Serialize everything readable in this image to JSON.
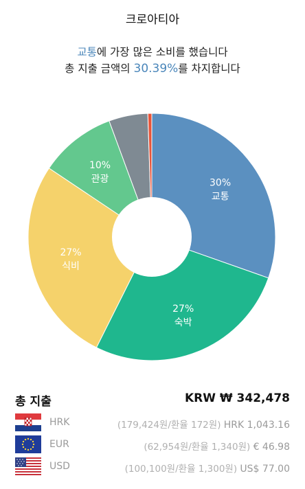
{
  "header": {
    "title": "크로아티아"
  },
  "summary": {
    "line1_accent": "교통",
    "line1_rest": "에 가장 많은 소비를 했습니다",
    "line2_prefix": "총 지출 금액의 ",
    "line2_percent": "30.39%",
    "line2_suffix": "를 차지합니다",
    "accent_color": "#4a86ba"
  },
  "chart_data": {
    "type": "pie",
    "donut": true,
    "slices": [
      {
        "label": "교통",
        "value": 30.39,
        "percent_text": "30%",
        "color": "#5b90c0"
      },
      {
        "label": "숙박",
        "value": 27,
        "percent_text": "27%",
        "color": "#1fb78e"
      },
      {
        "label": "식비",
        "value": 27,
        "percent_text": "27%",
        "color": "#f5d26b"
      },
      {
        "label": "관광",
        "value": 10,
        "percent_text": "10%",
        "color": "#63c88e"
      },
      {
        "label": "",
        "value": 5.1,
        "percent_text": "",
        "color": "#7f8a93"
      },
      {
        "label": "",
        "value": 0.51,
        "percent_text": "",
        "color": "#e8553a"
      }
    ]
  },
  "totals": {
    "label": "총 지출",
    "value": "KRW ₩ 342,478",
    "currencies": [
      {
        "code": "HRK",
        "detail": "(179,424원/환율 172원)",
        "amount": "HRK 1,043.16",
        "flag": "croatia-flag-icon"
      },
      {
        "code": "EUR",
        "detail": "(62,954원/환율 1,340원)",
        "amount": "€ 46.98",
        "flag": "eu-flag-icon"
      },
      {
        "code": "USD",
        "detail": "(100,100원/환율 1,300원)",
        "amount": "US$ 77.00",
        "flag": "us-flag-icon"
      }
    ]
  }
}
